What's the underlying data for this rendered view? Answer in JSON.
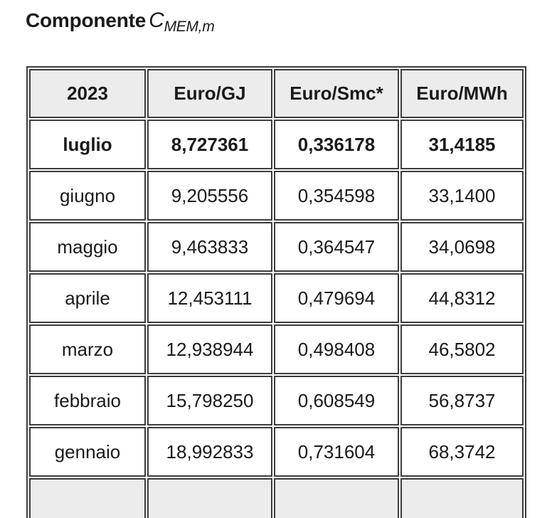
{
  "title": {
    "prefix": "Componente",
    "symbol": "C",
    "subscript": "MEM,m"
  },
  "table": {
    "headers": [
      "2023",
      "Euro/GJ",
      "Euro/Smc*",
      "Euro/MWh"
    ],
    "rows": [
      {
        "month": "luglio",
        "euro_gj": "8,727361",
        "euro_smc": "0,336178",
        "euro_mwh": "31,4185",
        "bold": true
      },
      {
        "month": "giugno",
        "euro_gj": "9,205556",
        "euro_smc": "0,354598",
        "euro_mwh": "33,1400",
        "bold": false
      },
      {
        "month": "maggio",
        "euro_gj": "9,463833",
        "euro_smc": "0,364547",
        "euro_mwh": "34,0698",
        "bold": false
      },
      {
        "month": "aprile",
        "euro_gj": "12,453111",
        "euro_smc": "0,479694",
        "euro_mwh": "44,8312",
        "bold": false
      },
      {
        "month": "marzo",
        "euro_gj": "12,938944",
        "euro_smc": "0,498408",
        "euro_mwh": "46,5802",
        "bold": false
      },
      {
        "month": "febbraio",
        "euro_gj": "15,798250",
        "euro_smc": "0,608549",
        "euro_mwh": "56,8737",
        "bold": false
      },
      {
        "month": "gennaio",
        "euro_gj": "18,992833",
        "euro_smc": "0,731604",
        "euro_mwh": "68,3742",
        "bold": false
      }
    ],
    "partial_next_row_visible": true
  },
  "colors": {
    "header_bg": "#ececec",
    "border": "#3d3d3d",
    "text": "#1a1a1a",
    "row_bg": "#ffffff"
  }
}
